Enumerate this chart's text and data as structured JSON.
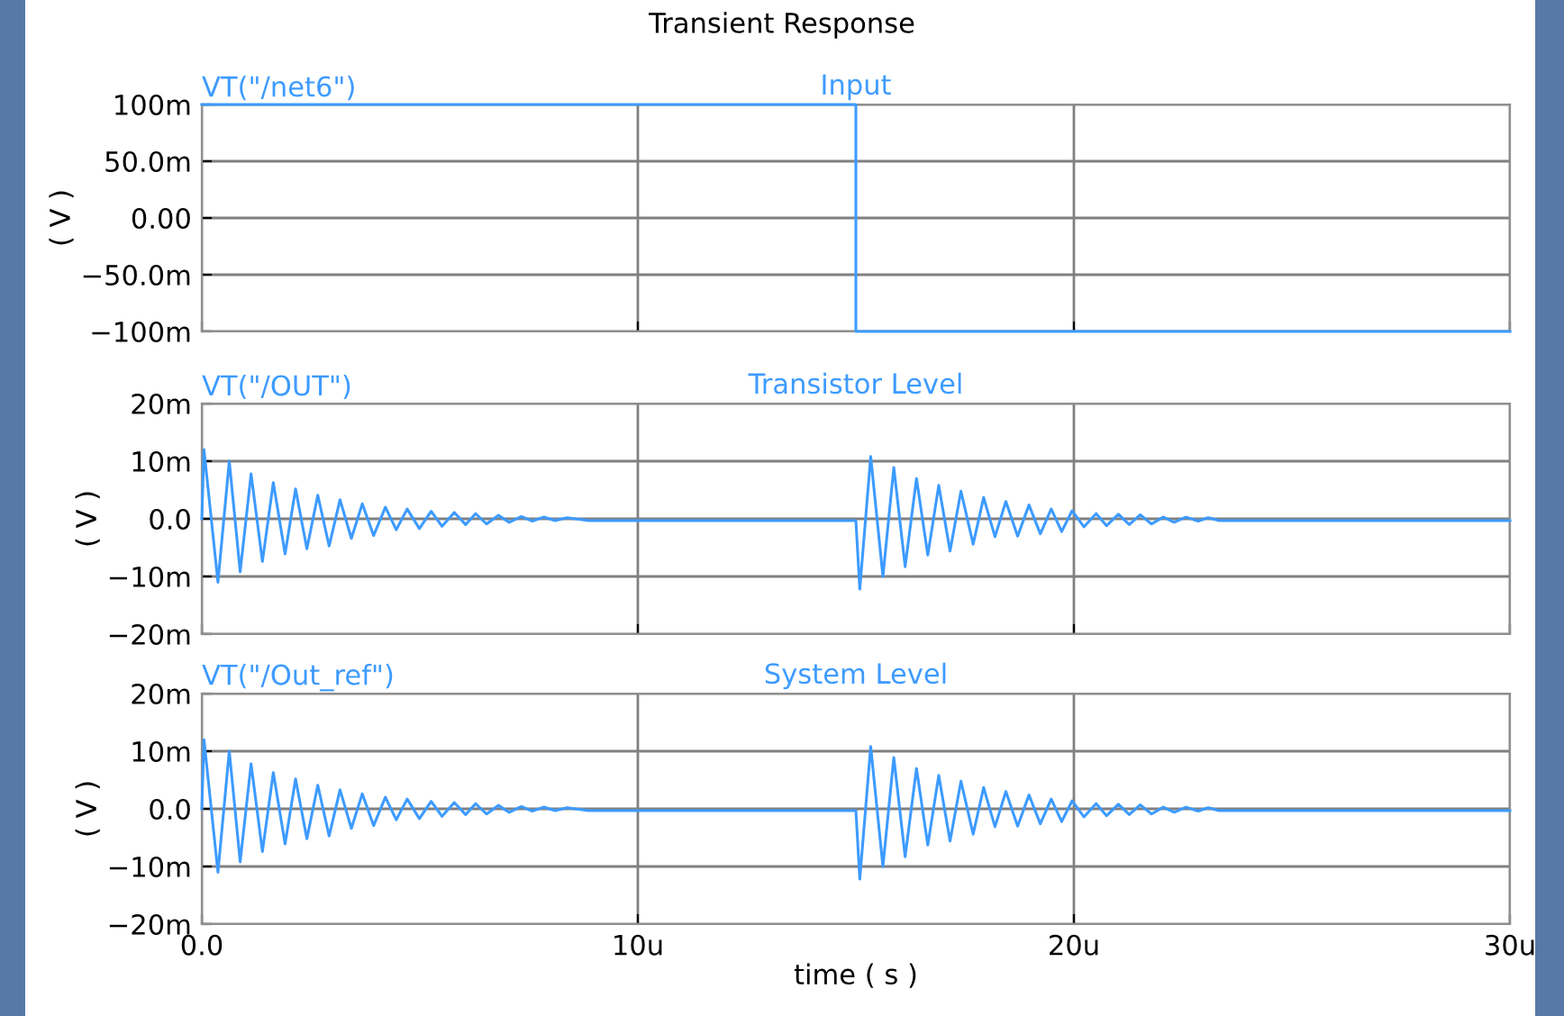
{
  "chart_data": [
    {
      "type": "line",
      "title": "Input",
      "ylabel": "( V )",
      "annotations": [
        "Transient Response"
      ],
      "tick_labels": "y",
      "grid": true,
      "xlim": [
        0,
        30
      ],
      "xticks": [
        {
          "value": 0,
          "label": null
        },
        {
          "value": 10,
          "label": null
        },
        {
          "value": 20,
          "label": null
        },
        {
          "value": 30,
          "label": null
        }
      ],
      "ylim": [
        -100,
        100
      ],
      "yticks": [
        {
          "value": -100,
          "label": "−100m"
        },
        {
          "value": -50,
          "label": "−50.0m"
        },
        {
          "value": 0,
          "label": "0.00"
        },
        {
          "value": 50,
          "label": "50.0m"
        },
        {
          "value": 100,
          "label": "100m"
        }
      ],
      "series": [
        {
          "name": "VT(\"/net6\")",
          "color": "#3d9bff",
          "x": [
            0,
            15,
            15,
            30
          ],
          "values": [
            100,
            100,
            -100,
            -100
          ]
        }
      ]
    },
    {
      "type": "line",
      "title": "Transistor Level",
      "ylabel": "( V )",
      "tick_labels": "y",
      "grid": true,
      "xlim": [
        0,
        30
      ],
      "xticks": [
        {
          "value": 0,
          "label": null
        },
        {
          "value": 10,
          "label": null
        },
        {
          "value": 20,
          "label": null
        },
        {
          "value": 30,
          "label": null
        }
      ],
      "ylim": [
        -20,
        20
      ],
      "yticks": [
        {
          "value": -20,
          "label": "−20m"
        },
        {
          "value": -10,
          "label": "−10m"
        },
        {
          "value": 0,
          "label": "0.0"
        },
        {
          "value": 10,
          "label": "10m"
        },
        {
          "value": 20,
          "label": "20m"
        }
      ],
      "series": [
        {
          "name": "VT(\"/OUT\")",
          "color": "#3d9bff",
          "x": [
            0,
            0.05,
            0.37,
            0.63,
            0.88,
            1.13,
            1.39,
            1.64,
            1.91,
            2.15,
            2.41,
            2.66,
            2.92,
            3.17,
            3.43,
            3.68,
            3.94,
            4.21,
            4.46,
            4.71,
            4.99,
            5.26,
            5.51,
            5.79,
            6.05,
            6.28,
            6.53,
            6.8,
            7.05,
            7.33,
            7.58,
            7.84,
            8.1,
            8.38,
            8.87,
            15.0,
            15.09,
            15.34,
            15.62,
            15.87,
            16.13,
            16.39,
            16.65,
            16.9,
            17.16,
            17.41,
            17.69,
            17.93,
            18.19,
            18.44,
            18.71,
            18.97,
            19.23,
            19.48,
            19.72,
            19.96,
            20.23,
            20.51,
            20.75,
            21.02,
            21.27,
            21.52,
            21.78,
            22.05,
            22.3,
            22.57,
            22.85,
            23.08,
            23.33,
            30
          ],
          "values": [
            0,
            12,
            -11,
            10,
            -9.2,
            7.8,
            -7.4,
            6.3,
            -6.1,
            5.2,
            -5.2,
            4.1,
            -4.7,
            3.3,
            -3.4,
            2.6,
            -2.9,
            2.0,
            -1.9,
            1.7,
            -1.7,
            1.3,
            -1.3,
            1.1,
            -1.0,
            0.9,
            -0.9,
            0.6,
            -0.6,
            0.4,
            -0.4,
            0.3,
            -0.3,
            0.2,
            -0.3,
            -0.3,
            -12.2,
            10.8,
            -10,
            8.9,
            -8.3,
            7,
            -6.3,
            5.8,
            -5.6,
            4.8,
            -4.4,
            3.7,
            -3.1,
            3.0,
            -3.0,
            2.4,
            -2.6,
            1.7,
            -2.2,
            1.4,
            -1.4,
            0.9,
            -1.2,
            0.8,
            -1.0,
            0.7,
            -0.9,
            0.3,
            -0.6,
            0.3,
            -0.4,
            0.2,
            -0.3,
            -0.3
          ]
        }
      ]
    },
    {
      "type": "line",
      "title": "System Level",
      "ylabel": "( V )",
      "xlabel": "time ( s )",
      "grid": true,
      "xlim": [
        0,
        30
      ],
      "xticks": [
        {
          "value": 0,
          "label": "0.0"
        },
        {
          "value": 10,
          "label": "10u"
        },
        {
          "value": 20,
          "label": "20u"
        },
        {
          "value": 30,
          "label": "30u"
        }
      ],
      "ylim": [
        -20,
        20
      ],
      "yticks": [
        {
          "value": -20,
          "label": "−20m"
        },
        {
          "value": -10,
          "label": "−10m"
        },
        {
          "value": 0,
          "label": "0.0"
        },
        {
          "value": 10,
          "label": "10m"
        },
        {
          "value": 20,
          "label": "20m"
        }
      ],
      "series": [
        {
          "name": "VT(\"/Out_ref\")",
          "color": "#3d9bff",
          "x": [
            0,
            0.05,
            0.37,
            0.63,
            0.88,
            1.13,
            1.39,
            1.64,
            1.91,
            2.15,
            2.41,
            2.66,
            2.92,
            3.17,
            3.43,
            3.68,
            3.94,
            4.21,
            4.46,
            4.71,
            4.99,
            5.26,
            5.51,
            5.79,
            6.05,
            6.28,
            6.53,
            6.8,
            7.05,
            7.33,
            7.58,
            7.84,
            8.1,
            8.38,
            8.87,
            15.0,
            15.09,
            15.34,
            15.62,
            15.87,
            16.13,
            16.39,
            16.65,
            16.9,
            17.16,
            17.41,
            17.69,
            17.93,
            18.19,
            18.44,
            18.71,
            18.97,
            19.23,
            19.48,
            19.72,
            19.96,
            20.23,
            20.51,
            20.75,
            21.02,
            21.27,
            21.52,
            21.78,
            22.05,
            22.3,
            22.57,
            22.85,
            23.08,
            23.33,
            30
          ],
          "values": [
            0,
            12,
            -11,
            10,
            -9.2,
            7.8,
            -7.4,
            6.3,
            -6.1,
            5.2,
            -5.2,
            4.1,
            -4.7,
            3.3,
            -3.4,
            2.6,
            -2.9,
            2.0,
            -1.9,
            1.7,
            -1.7,
            1.3,
            -1.3,
            1.1,
            -1.0,
            0.9,
            -0.9,
            0.6,
            -0.6,
            0.4,
            -0.4,
            0.3,
            -0.3,
            0.2,
            -0.3,
            -0.3,
            -12.2,
            10.8,
            -10,
            8.9,
            -8.3,
            7,
            -6.3,
            5.8,
            -5.6,
            4.8,
            -4.4,
            3.7,
            -3.1,
            3.0,
            -3.0,
            2.4,
            -2.6,
            1.7,
            -2.2,
            1.4,
            -1.4,
            0.9,
            -1.2,
            0.8,
            -1.0,
            0.7,
            -0.9,
            0.3,
            -0.6,
            0.3,
            -0.4,
            0.2,
            -0.3,
            -0.3
          ]
        }
      ]
    }
  ]
}
